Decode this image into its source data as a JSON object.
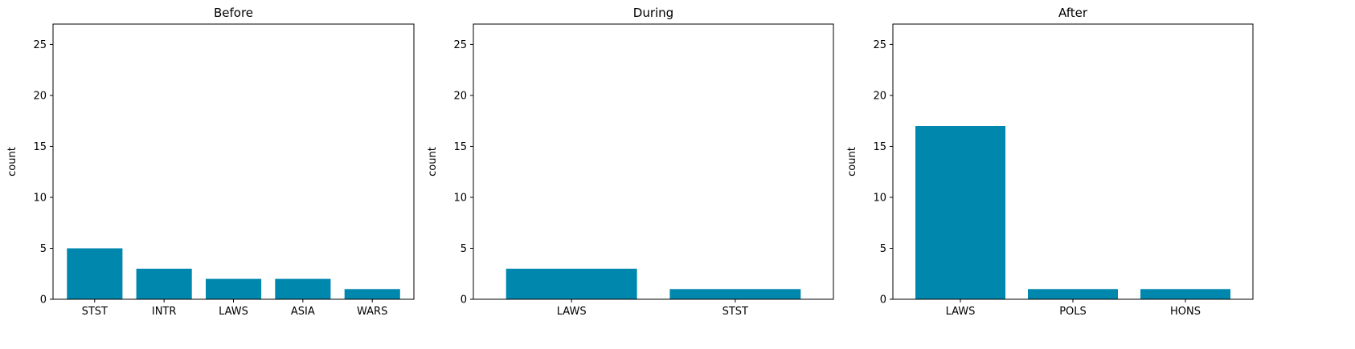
{
  "chart_data": [
    {
      "type": "bar",
      "title": "Before",
      "xlabel": "",
      "ylabel": "count",
      "categories": [
        "STST",
        "INTR",
        "LAWS",
        "ASIA",
        "WARS"
      ],
      "values": [
        5,
        3,
        2,
        2,
        1
      ],
      "ylim": [
        0,
        27
      ],
      "yticks": [
        0,
        5,
        10,
        15,
        20,
        25
      ],
      "color": "#0087ad",
      "grid": false
    },
    {
      "type": "bar",
      "title": "During",
      "xlabel": "",
      "ylabel": "count",
      "categories": [
        "LAWS",
        "STST"
      ],
      "values": [
        3,
        1
      ],
      "ylim": [
        0,
        27
      ],
      "yticks": [
        0,
        5,
        10,
        15,
        20,
        25
      ],
      "color": "#0087ad",
      "grid": false
    },
    {
      "type": "bar",
      "title": "After",
      "xlabel": "",
      "ylabel": "count",
      "categories": [
        "LAWS",
        "POLS",
        "HONS"
      ],
      "values": [
        17,
        1,
        1
      ],
      "ylim": [
        0,
        27
      ],
      "yticks": [
        0,
        5,
        10,
        15,
        20,
        25
      ],
      "color": "#0087ad",
      "grid": false
    }
  ]
}
